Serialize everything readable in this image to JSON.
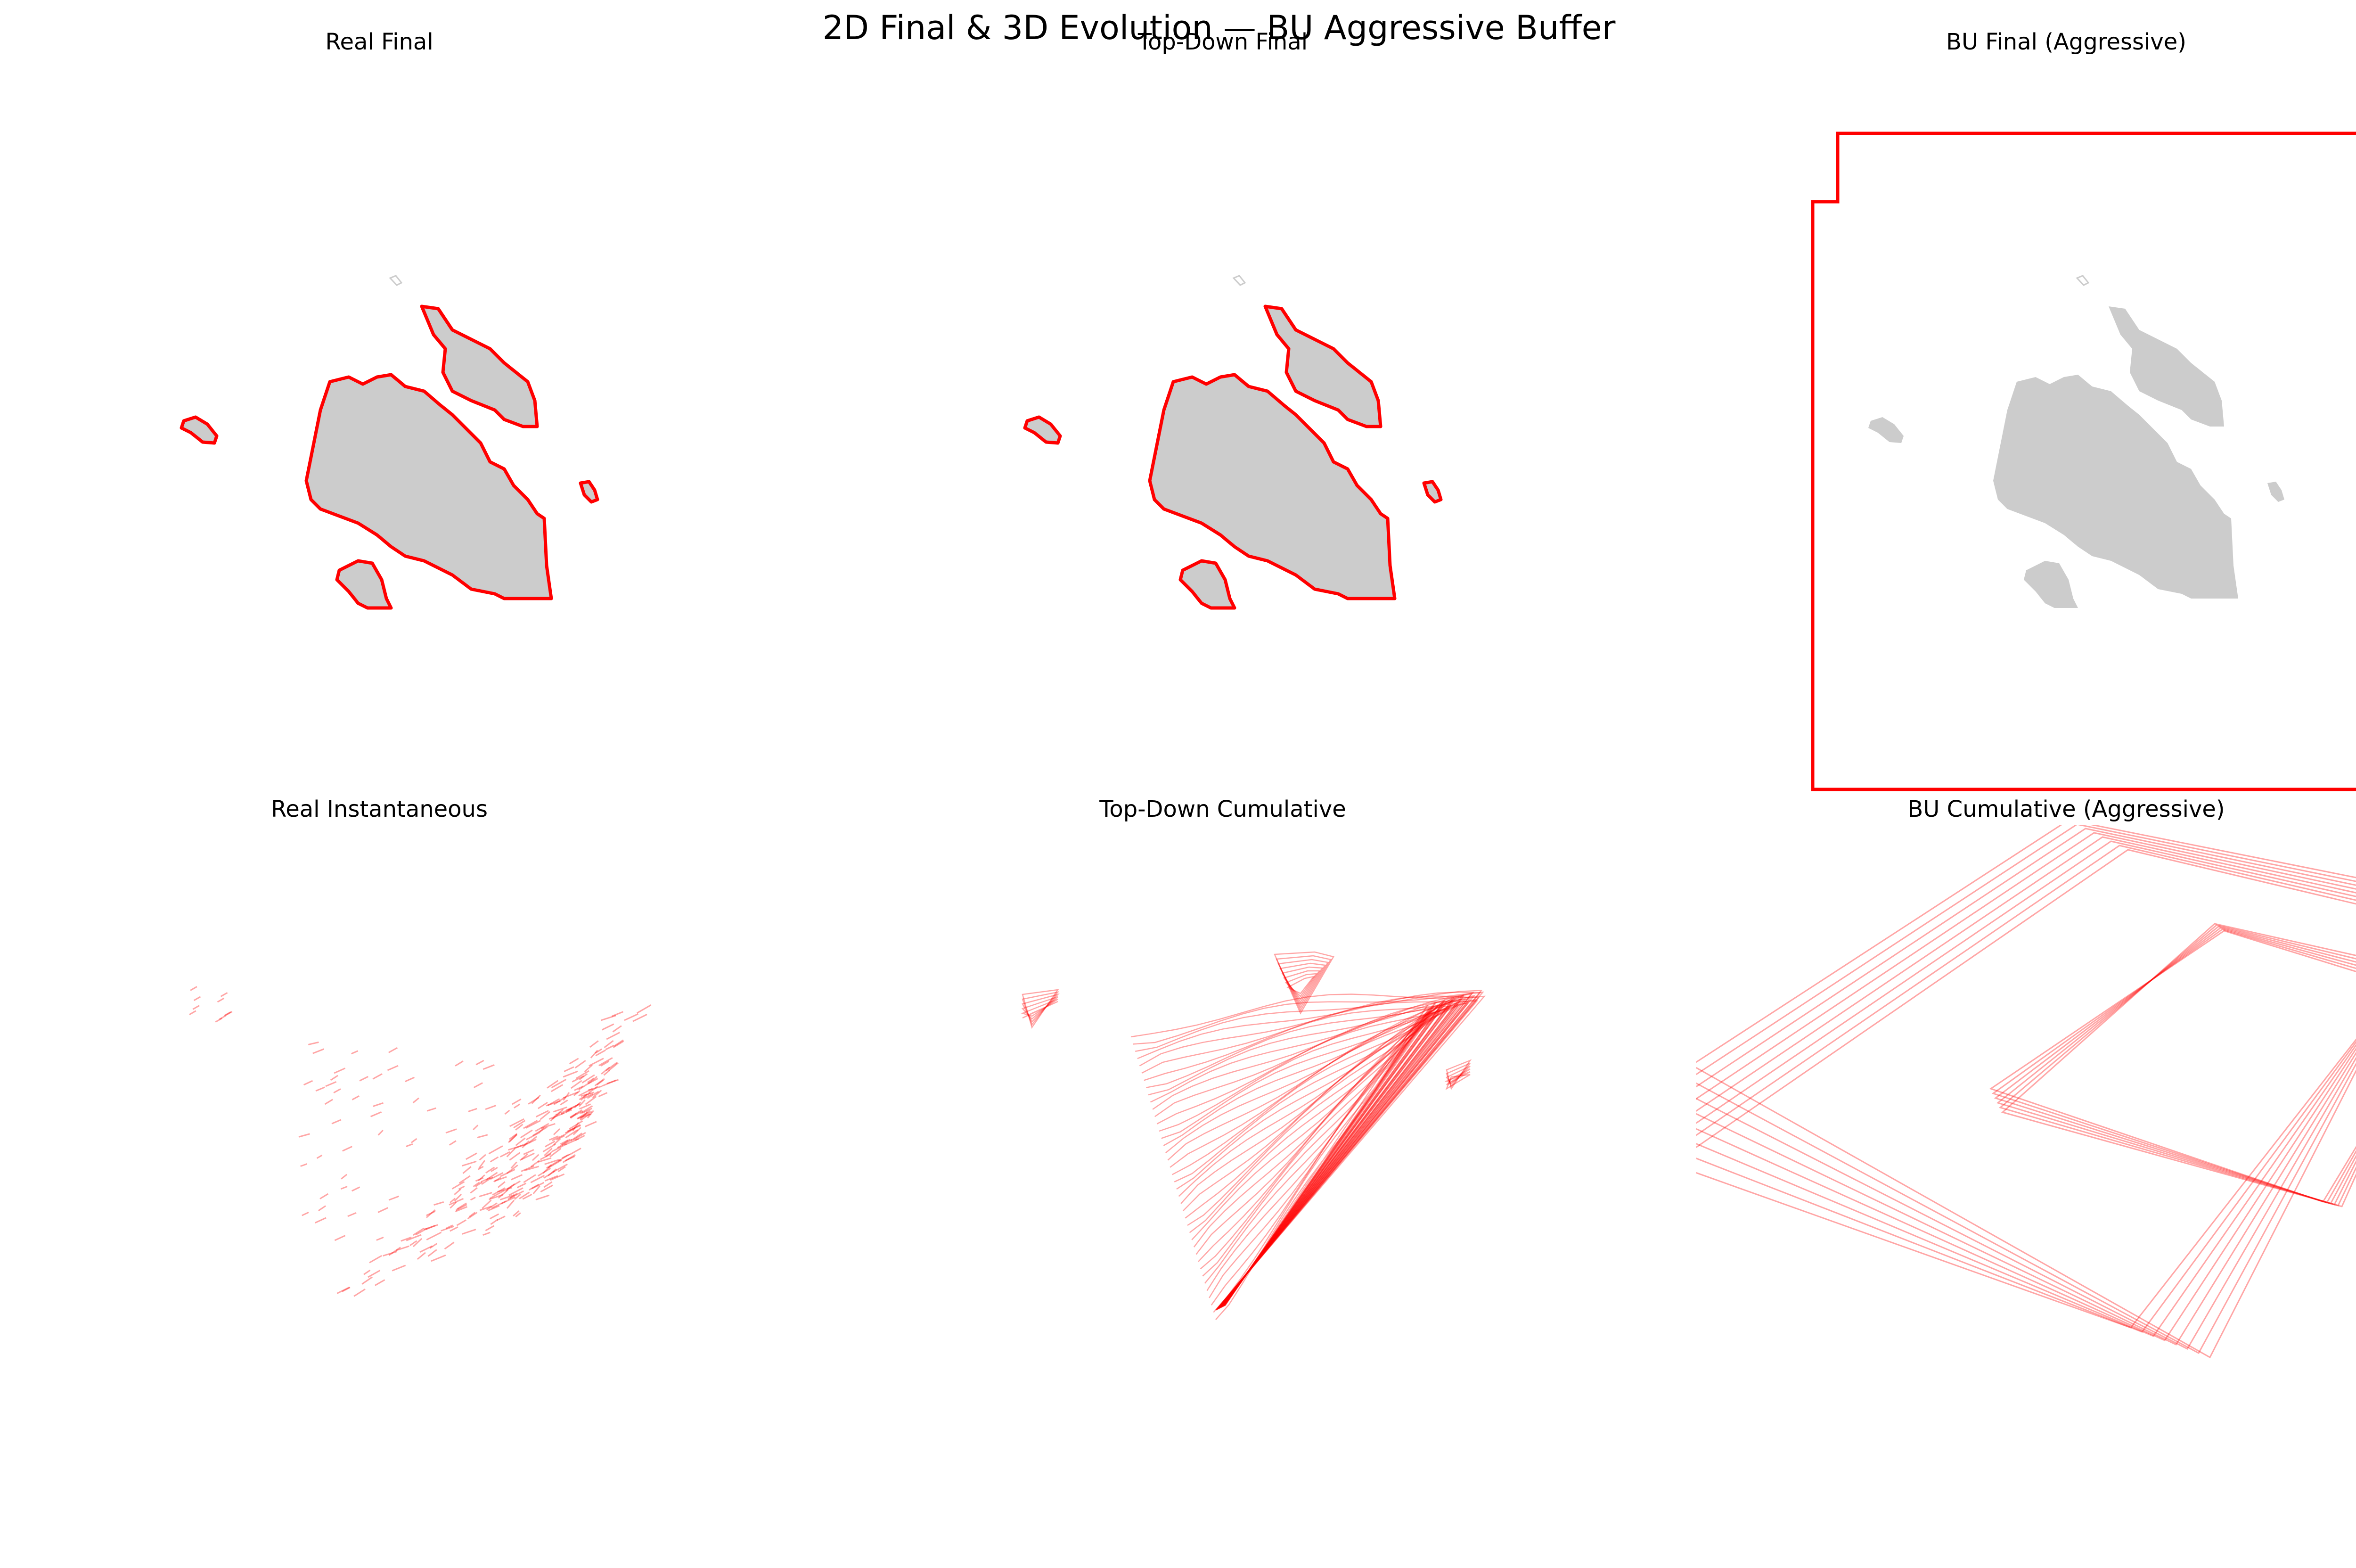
{
  "figure": {
    "title": "2D Final & 3D Evolution — BU Aggressive Buffer"
  },
  "colors": {
    "outline": "#ff0000",
    "fill": "#cccccc",
    "background": "#ffffff"
  },
  "chart_data": [
    {
      "type": "map",
      "title": "Real Final",
      "panel": "top-left",
      "layers": [
        "grey filled regions",
        "red outline per region"
      ],
      "axes": "off"
    },
    {
      "type": "map",
      "title": "Top-Down Final",
      "panel": "top-center",
      "layers": [
        "grey filled regions",
        "red outline per region"
      ],
      "axes": "off"
    },
    {
      "type": "map",
      "title": "BU Final (Aggressive)",
      "panel": "top-right",
      "layers": [
        "grey filled regions",
        "single red rectangular boundary"
      ],
      "axes": "off"
    },
    {
      "type": "3d-contour-stack",
      "title": "Real Instantaneous",
      "panel": "bottom-left",
      "axes": "off"
    },
    {
      "type": "3d-contour-stack",
      "title": "Top-Down Cumulative",
      "panel": "bottom-center",
      "axes": "off"
    },
    {
      "type": "3d-contour-stack",
      "title": "BU Cumulative (Aggressive)",
      "panel": "bottom-right",
      "axes": "off"
    }
  ]
}
